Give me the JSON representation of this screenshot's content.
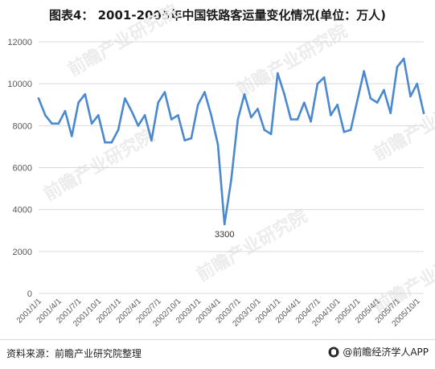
{
  "title": "图表4： 2001-2005年中国铁路客运量变化情况(单位：万人)",
  "source": "资料来源：前瞻产业研究院整理",
  "brand": "@前瞻经济学人APP",
  "watermark": "前瞻产业研究院",
  "colors": {
    "line": "#4a88cf",
    "grid": "#d9d9d9",
    "axis_text": "#595959"
  },
  "chart_data": {
    "type": "line",
    "title": "图表4： 2001-2005年中国铁路客运量变化情况(单位：万人)",
    "ylabel": "万人",
    "ylim": [
      0,
      12000
    ],
    "yticks": [
      0,
      2000,
      4000,
      6000,
      8000,
      10000,
      12000
    ],
    "grid": true,
    "x": [
      "2001/1/1",
      "2001/2/1",
      "2001/3/1",
      "2001/4/1",
      "2001/5/1",
      "2001/6/1",
      "2001/7/1",
      "2001/8/1",
      "2001/9/1",
      "2001/10/1",
      "2001/11/1",
      "2001/12/1",
      "2002/1/1",
      "2002/2/1",
      "2002/3/1",
      "2002/4/1",
      "2002/5/1",
      "2002/6/1",
      "2002/7/1",
      "2002/8/1",
      "2002/9/1",
      "2002/10/1",
      "2002/11/1",
      "2002/12/1",
      "2003/1/1",
      "2003/2/1",
      "2003/3/1",
      "2003/4/1",
      "2003/5/1",
      "2003/6/1",
      "2003/7/1",
      "2003/8/1",
      "2003/9/1",
      "2003/10/1",
      "2003/11/1",
      "2003/12/1",
      "2004/1/1",
      "2004/2/1",
      "2004/3/1",
      "2004/4/1",
      "2004/5/1",
      "2004/6/1",
      "2004/7/1",
      "2004/8/1",
      "2004/9/1",
      "2004/10/1",
      "2004/11/1",
      "2004/12/1",
      "2005/1/1",
      "2005/2/1",
      "2005/3/1",
      "2005/4/1",
      "2005/5/1",
      "2005/6/1",
      "2005/7/1",
      "2005/8/1",
      "2005/9/1",
      "2005/10/1",
      "2005/11/1"
    ],
    "xtick_labels": [
      "2001/1/1",
      "2001/4/1",
      "2001/7/1",
      "2001/10/1",
      "2002/1/1",
      "2002/4/1",
      "2002/7/1",
      "2002/10/1",
      "2003/1/1",
      "2003/4/1",
      "2003/7/1",
      "2003/10/1",
      "2004/1/1",
      "2004/4/1",
      "2004/7/1",
      "2004/10/1",
      "2005/1/1",
      "2005/4/1",
      "2005/7/1",
      "2005/10/1"
    ],
    "series": [
      {
        "values": [
          9300,
          8500,
          8100,
          8100,
          8700,
          7500,
          9100,
          9500,
          8100,
          8500,
          7200,
          7200,
          7800,
          9300,
          8700,
          8000,
          8500,
          7300,
          9100,
          9600,
          8300,
          8500,
          7300,
          7400,
          9000,
          9600,
          8500,
          7100,
          3300,
          5400,
          8300,
          9500,
          8400,
          8800,
          7800,
          7600,
          10500,
          9500,
          8300,
          8300,
          9100,
          8200,
          10000,
          10300,
          8500,
          9000,
          7700,
          7800,
          9200,
          10600,
          9300,
          9100,
          9700,
          8600,
          10800,
          11200,
          9400,
          10000,
          8600
        ]
      }
    ],
    "annotations": [
      {
        "x": "2003/5/1",
        "text": "3300"
      }
    ]
  }
}
